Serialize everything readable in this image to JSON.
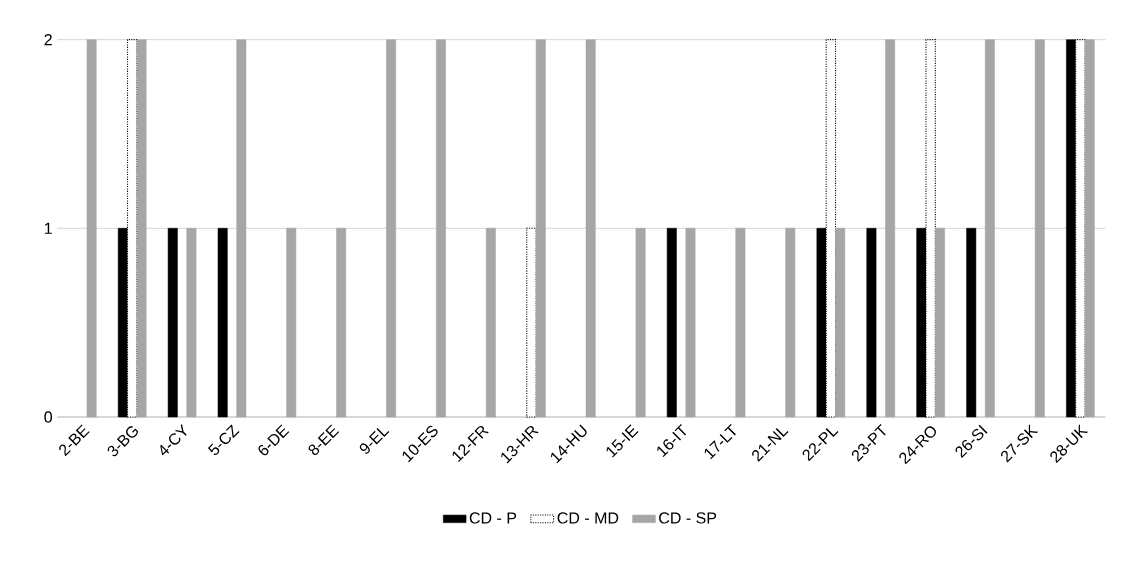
{
  "chart_data": {
    "type": "bar",
    "categories": [
      "2-BE",
      "3-BG",
      "4-CY",
      "5-CZ",
      "6-DE",
      "8-EE",
      "9-EL",
      "10-ES",
      "12-FR",
      "13-HR",
      "14-HU",
      "15-IE",
      "16-IT",
      "17-LT",
      "21-NL",
      "22-PL",
      "23-PT",
      "24-RO",
      "26-SI",
      "27-SK",
      "28-UK"
    ],
    "series": [
      {
        "name": "CD - P",
        "color": "#000000",
        "values": [
          0,
          1,
          1,
          1,
          0,
          0,
          0,
          0,
          0,
          0,
          0,
          0,
          1,
          0,
          0,
          1,
          1,
          1,
          1,
          0,
          2
        ]
      },
      {
        "name": "CD - MD",
        "color": "#ffffff",
        "values": [
          0,
          2,
          0,
          0,
          0,
          0,
          0,
          0,
          0,
          1,
          0,
          0,
          0,
          0,
          0,
          2,
          0,
          2,
          0,
          0,
          2
        ]
      },
      {
        "name": "CD - SP",
        "color": "#a6a6a6",
        "values": [
          2,
          2,
          1,
          2,
          1,
          1,
          2,
          2,
          1,
          2,
          2,
          1,
          1,
          1,
          1,
          1,
          2,
          1,
          2,
          2,
          2
        ]
      }
    ],
    "ylim": [
      0,
      2
    ],
    "yticks": [
      0,
      1,
      2
    ],
    "grid": "y",
    "legend": "bottom"
  }
}
